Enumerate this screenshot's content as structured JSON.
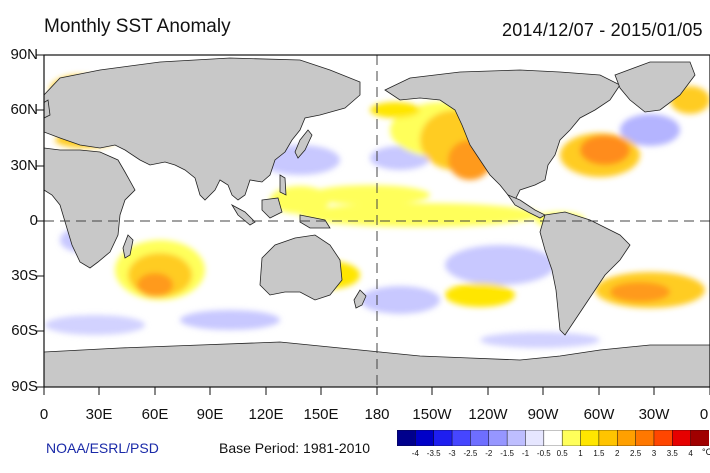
{
  "title": "Monthly SST Anomaly",
  "date_range": "2014/12/07 - 2015/01/05",
  "source": "NOAA/ESRL/PSD",
  "base_period": "Base Period: 1981-2010",
  "units": "°C",
  "axes": {
    "lat_labels": [
      "90N",
      "60N",
      "30N",
      "0",
      "30S",
      "60S",
      "90S"
    ],
    "lon_labels": [
      "0",
      "30E",
      "60E",
      "90E",
      "120E",
      "150E",
      "180",
      "150W",
      "120W",
      "90W",
      "60W",
      "30W",
      "0"
    ]
  },
  "colorbar": {
    "labels": [
      "-4",
      "-3.5",
      "-3",
      "-2.5",
      "-2",
      "-1.5",
      "-1",
      "-0.5",
      "0.5",
      "1",
      "1.5",
      "2",
      "2.5",
      "3",
      "3.5",
      "4"
    ],
    "colors": [
      "#00008c",
      "#0000c8",
      "#1e1ef0",
      "#4646ff",
      "#6e6eff",
      "#9696ff",
      "#bebeff",
      "#e6e6ff",
      "#ffffff",
      "#ffff5a",
      "#ffe600",
      "#ffc400",
      "#ffa000",
      "#ff7800",
      "#ff4600",
      "#e60000",
      "#a00000"
    ]
  },
  "colors": {
    "land": "#c8c8c8",
    "ocean_neutral": "#ffffff",
    "warm_light": "#ffff66",
    "warm_mid": "#ffcc22",
    "warm_strong": "#ff8c1a",
    "cool_light": "#c8c8ff",
    "cool_mid": "#9696ff"
  }
}
